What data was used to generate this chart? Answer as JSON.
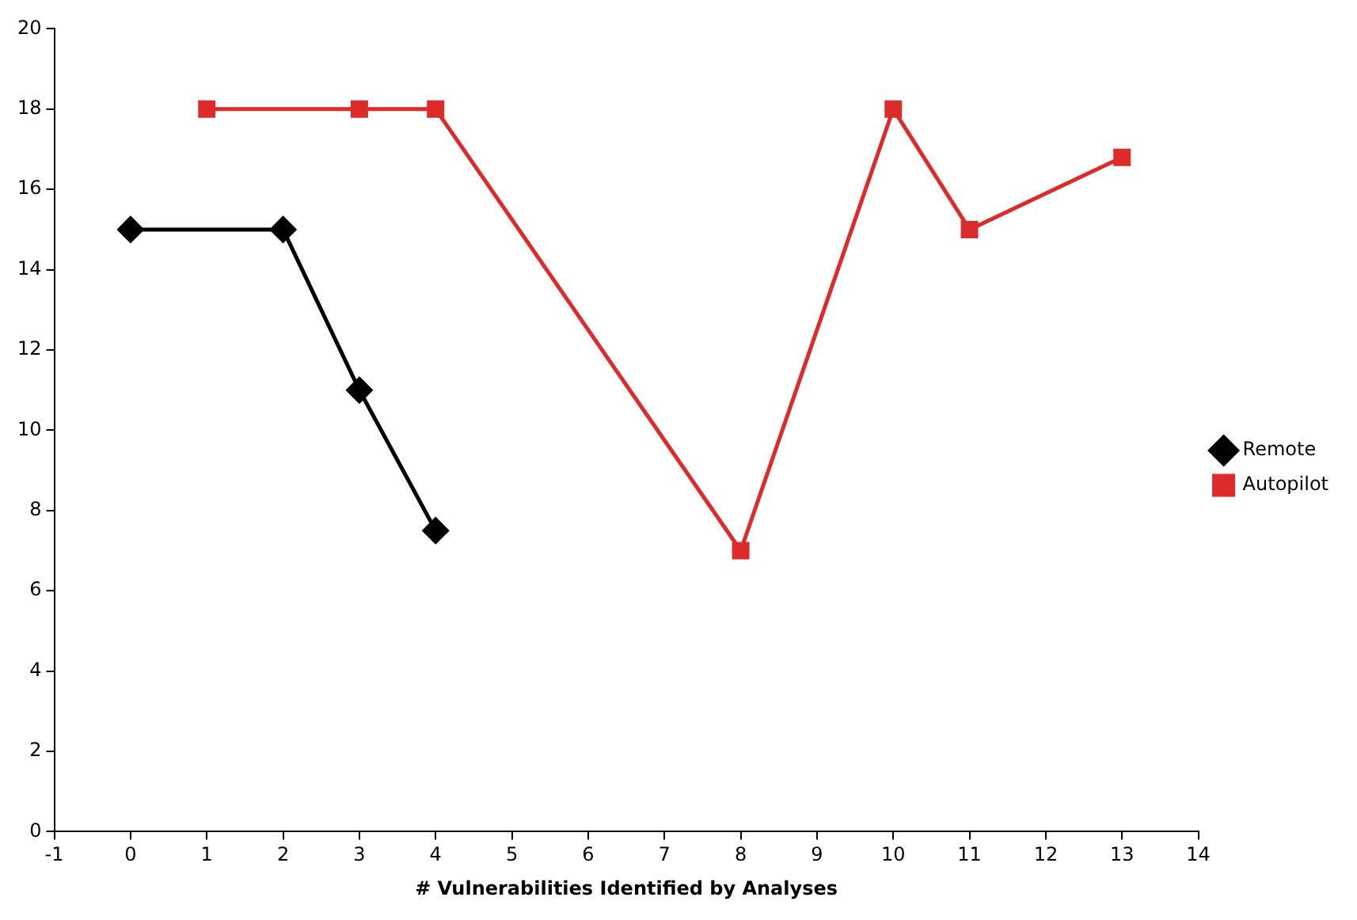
{
  "chart_data": {
    "type": "line",
    "xlabel": "# Vulnerabilities Identified by Analyses",
    "xlim": [
      -1,
      14
    ],
    "xticks": [
      -1,
      0,
      1,
      2,
      3,
      4,
      5,
      6,
      7,
      8,
      9,
      10,
      11,
      12,
      13,
      14
    ],
    "ylim": [
      0,
      20
    ],
    "yticks": [
      0,
      2,
      4,
      6,
      8,
      10,
      12,
      14,
      16,
      18,
      20
    ],
    "grid": false,
    "legend": "right",
    "series": [
      {
        "name": "Remote",
        "color": "#000000",
        "marker": "diamond",
        "x": [
          0,
          2,
          3,
          4
        ],
        "values": [
          15,
          15,
          11,
          7.5
        ]
      },
      {
        "name": "Autopilot",
        "color": "#dd2a2a",
        "marker": "square",
        "x": [
          1,
          3,
          4,
          8,
          10,
          11,
          13
        ],
        "values": [
          18,
          18,
          18,
          7,
          18,
          15,
          16.8
        ]
      }
    ]
  }
}
